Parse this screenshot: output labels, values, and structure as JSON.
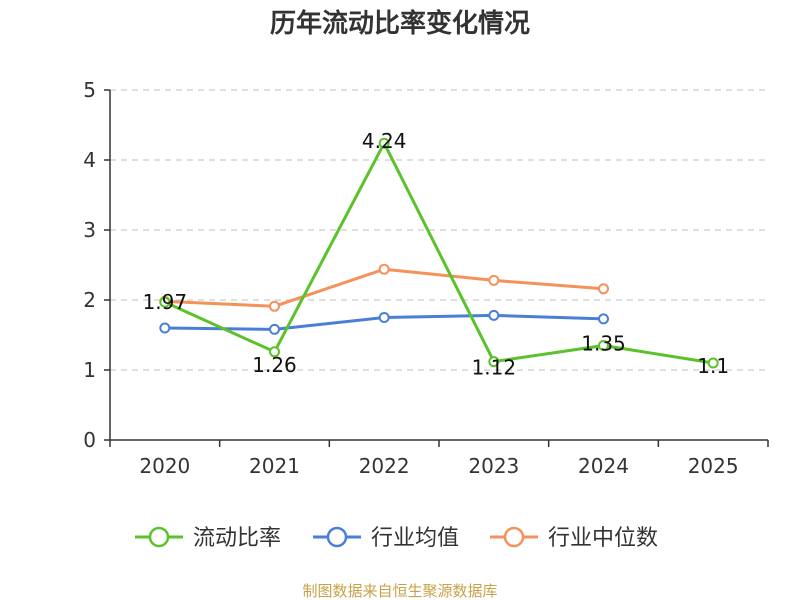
{
  "chart_data": {
    "type": "line",
    "title": "历年流动比率变化情况",
    "categories": [
      "2020",
      "2021",
      "2022",
      "2023",
      "2024",
      "2025"
    ],
    "ylim": [
      0,
      5
    ],
    "yticks": [
      "0",
      "1",
      "2",
      "3",
      "4",
      "5"
    ],
    "grid": true,
    "legend_position": "bottom",
    "series": [
      {
        "name": "流动比率",
        "color": "#5cc22b",
        "values": [
          1.97,
          1.26,
          4.24,
          1.12,
          1.35,
          1.1
        ],
        "labels": [
          "1.97",
          "1.26",
          "4.24",
          "1.12",
          "1.35",
          "1.1"
        ]
      },
      {
        "name": "行业均值",
        "color": "#4a7fd8",
        "values": [
          1.6,
          1.58,
          1.75,
          1.78,
          1.73,
          null
        ]
      },
      {
        "name": "行业中位数",
        "color": "#f5915a",
        "values": [
          1.98,
          1.91,
          2.44,
          2.28,
          2.16,
          null
        ]
      }
    ],
    "source": "制图数据来自恒生聚源数据库"
  }
}
